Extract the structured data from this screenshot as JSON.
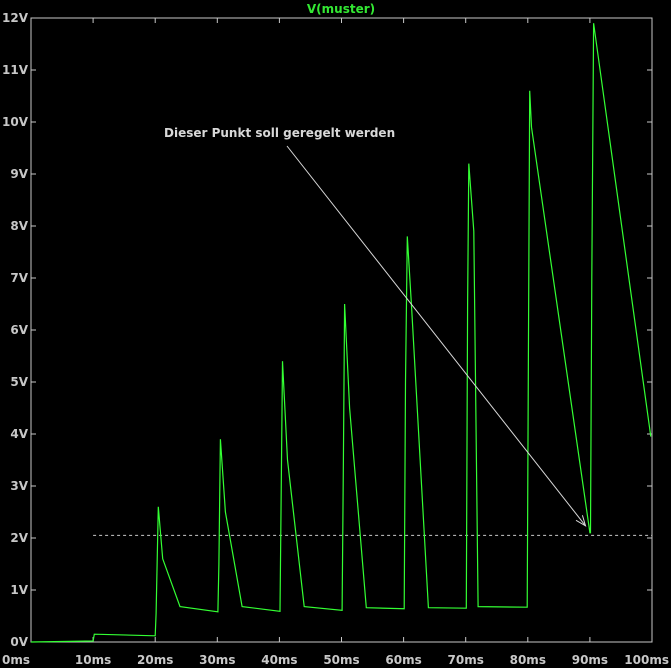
{
  "chart_data": {
    "type": "line",
    "title": "V(muster)",
    "xlabel": "",
    "ylabel": "",
    "x_unit": "ms",
    "y_unit": "V",
    "xlim": [
      0,
      100
    ],
    "ylim": [
      0,
      12
    ],
    "x_ticks": [
      "0ms",
      "10ms",
      "20ms",
      "30ms",
      "40ms",
      "50ms",
      "60ms",
      "70ms",
      "80ms",
      "90ms",
      "100ms"
    ],
    "y_ticks": [
      "0V",
      "1V",
      "2V",
      "3V",
      "4V",
      "5V",
      "6V",
      "7V",
      "8V",
      "9V",
      "10V",
      "11V",
      "12V"
    ],
    "grid": false,
    "colors": {
      "background": "#000000",
      "series": "#33ff33",
      "title": "#33e833",
      "axis": "#c8c8c8",
      "annotation": "#d8d8d8"
    },
    "series": [
      {
        "name": "V(muster)",
        "x": [
          0,
          10.0,
          10.2,
          20.0,
          20.15,
          20.5,
          21.2,
          24.0,
          30.1,
          30.25,
          30.5,
          31.3,
          34.0,
          40.1,
          40.25,
          40.5,
          41.3,
          44.0,
          50.1,
          50.3,
          50.5,
          51.3,
          54.0,
          60.1,
          60.3,
          60.6,
          61.3,
          64.0,
          70.1,
          70.3,
          70.5,
          71.3,
          72.0,
          79.9,
          80.1,
          80.3,
          80.6,
          90.0,
          90.1,
          90.3,
          90.6,
          99.8
        ],
        "y": [
          0,
          0.02,
          0.15,
          0.12,
          0.55,
          2.6,
          1.6,
          0.68,
          0.58,
          1.5,
          3.9,
          2.5,
          0.68,
          0.59,
          2.5,
          5.4,
          3.5,
          0.68,
          0.61,
          3.5,
          6.5,
          4.5,
          0.66,
          0.64,
          5.0,
          7.8,
          6.4,
          0.66,
          0.65,
          6.5,
          9.2,
          7.9,
          0.68,
          0.67,
          5.5,
          10.6,
          9.9,
          2.1,
          2.1,
          7.0,
          11.9,
          3.95
        ]
      }
    ],
    "reference_line": {
      "y": 2.05,
      "x_from": 10,
      "x_to": 100,
      "style": "dashed"
    },
    "annotation": {
      "text": "Dieser Punkt soll geregelt werden",
      "target_x": 90.1,
      "target_y": 2.1
    }
  }
}
